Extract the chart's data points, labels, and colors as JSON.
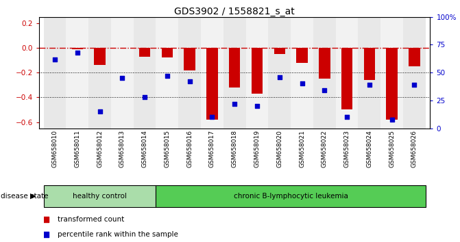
{
  "title": "GDS3902 / 1558821_s_at",
  "samples": [
    "GSM658010",
    "GSM658011",
    "GSM658012",
    "GSM658013",
    "GSM658014",
    "GSM658015",
    "GSM658016",
    "GSM658017",
    "GSM658018",
    "GSM658019",
    "GSM658020",
    "GSM658021",
    "GSM658022",
    "GSM658023",
    "GSM658024",
    "GSM658025",
    "GSM658026"
  ],
  "bar_values": [
    0.0,
    -0.01,
    -0.14,
    0.0,
    -0.07,
    -0.08,
    -0.18,
    -0.58,
    -0.32,
    -0.37,
    -0.05,
    -0.12,
    -0.25,
    -0.5,
    -0.26,
    -0.58,
    -0.15
  ],
  "dot_pct": [
    62,
    68,
    15,
    45,
    28,
    47,
    42,
    10,
    22,
    20,
    46,
    40,
    34,
    10,
    39,
    8,
    39
  ],
  "bar_color": "#cc0000",
  "dot_color": "#0000cc",
  "ylim_left": [
    -0.65,
    0.25
  ],
  "ylim_right": [
    0,
    100
  ],
  "right_ticks": [
    0,
    25,
    50,
    75,
    100
  ],
  "right_tick_labels": [
    "0",
    "25",
    "50",
    "75",
    "100%"
  ],
  "left_ticks": [
    -0.6,
    -0.4,
    -0.2,
    0.0,
    0.2
  ],
  "disease_state_label": "disease state",
  "group1_label": "healthy control",
  "group2_label": "chronic B-lymphocytic leukemia",
  "group1_color": "#aaddaa",
  "group2_color": "#55cc55",
  "group1_samples": 5,
  "group2_samples": 12,
  "legend_bar_label": "transformed count",
  "legend_dot_label": "percentile rank within the sample",
  "title_fontsize": 10,
  "axis_fontsize": 7.5,
  "tick_fontsize": 6.5
}
